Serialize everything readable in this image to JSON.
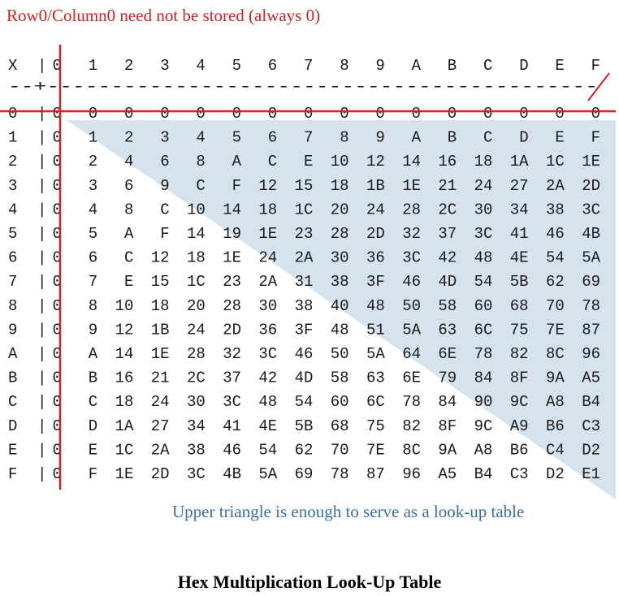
{
  "top_note": "Row0/Column0 need not be stored (always 0)",
  "header_label": "X",
  "separator_row": "--+-------------------------------------------",
  "bottom_note": "Upper triangle is enough to serve as a look-up table",
  "caption": "Hex Multiplication Look-Up Table",
  "colors": {
    "red_line": "#d42020",
    "triangle_fill": "#d6e2ee",
    "top_note": "#cc2222",
    "bottom_note": "#3b6ea5"
  },
  "columns": [
    "0",
    "1",
    "2",
    "3",
    "4",
    "5",
    "6",
    "7",
    "8",
    "9",
    "A",
    "B",
    "C",
    "D",
    "E",
    "F"
  ],
  "rows": [
    {
      "label": "0",
      "cells": [
        "0",
        "0",
        "0",
        "0",
        "0",
        "0",
        "0",
        "0",
        "0",
        "0",
        "0",
        "0",
        "0",
        "0",
        "0",
        "0"
      ]
    },
    {
      "label": "1",
      "cells": [
        "0",
        "1",
        "2",
        "3",
        "4",
        "5",
        "6",
        "7",
        "8",
        "9",
        "A",
        "B",
        "C",
        "D",
        "E",
        "F"
      ]
    },
    {
      "label": "2",
      "cells": [
        "0",
        "2",
        "4",
        "6",
        "8",
        "A",
        "C",
        "E",
        "10",
        "12",
        "14",
        "16",
        "18",
        "1A",
        "1C",
        "1E"
      ]
    },
    {
      "label": "3",
      "cells": [
        "0",
        "3",
        "6",
        "9",
        "C",
        "F",
        "12",
        "15",
        "18",
        "1B",
        "1E",
        "21",
        "24",
        "27",
        "2A",
        "2D"
      ]
    },
    {
      "label": "4",
      "cells": [
        "0",
        "4",
        "8",
        "C",
        "10",
        "14",
        "18",
        "1C",
        "20",
        "24",
        "28",
        "2C",
        "30",
        "34",
        "38",
        "3C"
      ]
    },
    {
      "label": "5",
      "cells": [
        "0",
        "5",
        "A",
        "F",
        "14",
        "19",
        "1E",
        "23",
        "28",
        "2D",
        "32",
        "37",
        "3C",
        "41",
        "46",
        "4B"
      ]
    },
    {
      "label": "6",
      "cells": [
        "0",
        "6",
        "C",
        "12",
        "18",
        "1E",
        "24",
        "2A",
        "30",
        "36",
        "3C",
        "42",
        "48",
        "4E",
        "54",
        "5A"
      ]
    },
    {
      "label": "7",
      "cells": [
        "0",
        "7",
        "E",
        "15",
        "1C",
        "23",
        "2A",
        "31",
        "38",
        "3F",
        "46",
        "4D",
        "54",
        "5B",
        "62",
        "69"
      ]
    },
    {
      "label": "8",
      "cells": [
        "0",
        "8",
        "10",
        "18",
        "20",
        "28",
        "30",
        "38",
        "40",
        "48",
        "50",
        "58",
        "60",
        "68",
        "70",
        "78"
      ]
    },
    {
      "label": "9",
      "cells": [
        "0",
        "9",
        "12",
        "1B",
        "24",
        "2D",
        "36",
        "3F",
        "48",
        "51",
        "5A",
        "63",
        "6C",
        "75",
        "7E",
        "87"
      ]
    },
    {
      "label": "A",
      "cells": [
        "0",
        "A",
        "14",
        "1E",
        "28",
        "32",
        "3C",
        "46",
        "50",
        "5A",
        "64",
        "6E",
        "78",
        "82",
        "8C",
        "96"
      ]
    },
    {
      "label": "B",
      "cells": [
        "0",
        "B",
        "16",
        "21",
        "2C",
        "37",
        "42",
        "4D",
        "58",
        "63",
        "6E",
        "79",
        "84",
        "8F",
        "9A",
        "A5"
      ]
    },
    {
      "label": "C",
      "cells": [
        "0",
        "C",
        "18",
        "24",
        "30",
        "3C",
        "48",
        "54",
        "60",
        "6C",
        "78",
        "84",
        "90",
        "9C",
        "A8",
        "B4"
      ]
    },
    {
      "label": "D",
      "cells": [
        "0",
        "D",
        "1A",
        "27",
        "34",
        "41",
        "4E",
        "5B",
        "68",
        "75",
        "82",
        "8F",
        "9C",
        "A9",
        "B6",
        "C3"
      ]
    },
    {
      "label": "E",
      "cells": [
        "0",
        "E",
        "1C",
        "2A",
        "38",
        "46",
        "54",
        "62",
        "70",
        "7E",
        "8C",
        "9A",
        "A8",
        "B6",
        "C4",
        "D2"
      ]
    },
    {
      "label": "F",
      "cells": [
        "0",
        "F",
        "1E",
        "2D",
        "3C",
        "4B",
        "5A",
        "69",
        "78",
        "87",
        "96",
        "A5",
        "B4",
        "C3",
        "D2",
        "E1"
      ]
    }
  ]
}
